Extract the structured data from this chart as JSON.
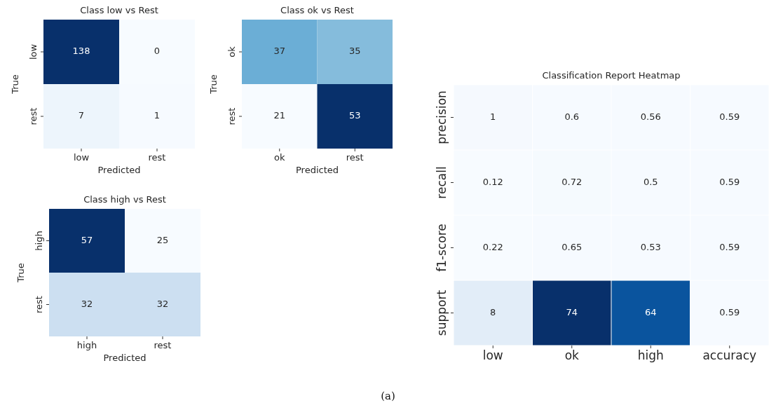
{
  "chart_data": [
    {
      "type": "heatmap",
      "title": "Class low vs Rest",
      "xlabel": "Predicted",
      "ylabel": "True",
      "categories": [
        "low",
        "rest"
      ],
      "y_categories": [
        "low",
        "rest"
      ],
      "cells": [
        [
          138,
          0
        ],
        [
          7,
          1
        ]
      ],
      "data_labels": true
    },
    {
      "type": "heatmap",
      "title": "Class ok vs Rest",
      "xlabel": "Predicted",
      "ylabel": "True",
      "categories": [
        "ok",
        "rest"
      ],
      "y_categories": [
        "ok",
        "rest"
      ],
      "cells": [
        [
          37,
          35
        ],
        [
          21,
          53
        ]
      ],
      "data_labels": true
    },
    {
      "type": "heatmap",
      "title": "Class high vs Rest",
      "xlabel": "Predicted",
      "ylabel": "True",
      "categories": [
        "high",
        "rest"
      ],
      "y_categories": [
        "high",
        "rest"
      ],
      "cells": [
        [
          57,
          25
        ],
        [
          32,
          32
        ]
      ],
      "data_labels": true
    },
    {
      "type": "heatmap",
      "title": "Classification Report Heatmap",
      "categories": [
        "low",
        "ok",
        "high",
        "accuracy"
      ],
      "y_categories": [
        "precision",
        "recall",
        "f1-score",
        "support"
      ],
      "data_labels": true,
      "cells": [
        [
          1,
          0.6,
          0.56,
          0.59
        ],
        [
          0.12,
          0.72,
          0.5,
          0.59
        ],
        [
          0.22,
          0.65,
          0.53,
          0.59
        ],
        [
          8,
          74,
          64,
          0.59
        ]
      ],
      "annotations": [
        "(a)"
      ]
    }
  ]
}
